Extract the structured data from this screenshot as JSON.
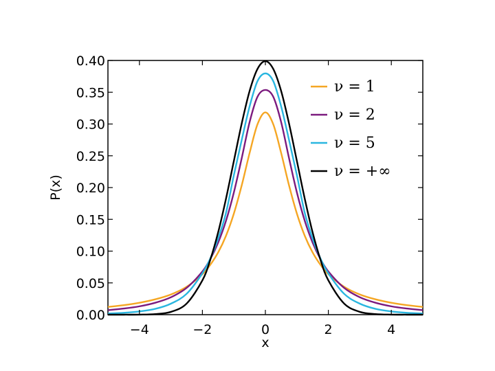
{
  "chart_data": {
    "type": "line",
    "title": "",
    "xlabel": "x",
    "ylabel": "P(x)",
    "xlim": [
      -5,
      5
    ],
    "ylim": [
      0,
      0.4
    ],
    "x_ticks": [
      -4,
      -2,
      0,
      2,
      4
    ],
    "x_tick_labels": [
      "−4",
      "−2",
      "0",
      "2",
      "4"
    ],
    "y_ticks": [
      0,
      0.05,
      0.1,
      0.15,
      0.2,
      0.25,
      0.3,
      0.35,
      0.4
    ],
    "y_tick_labels": [
      "0.00",
      "0.05",
      "0.10",
      "0.15",
      "0.20",
      "0.25",
      "0.30",
      "0.35",
      "0.40"
    ],
    "grid": false,
    "legend_position": "top-right",
    "x": [
      -5,
      -4.5,
      -4,
      -3.5,
      -3,
      -2.5,
      -2,
      -1.75,
      -1.5,
      -1.25,
      -1,
      -0.75,
      -0.5,
      -0.25,
      0,
      0.25,
      0.5,
      0.75,
      1,
      1.25,
      1.5,
      1.75,
      2,
      2.5,
      3,
      3.5,
      4,
      4.5,
      5
    ],
    "series": [
      {
        "name": "ν = 1",
        "color": "#f5a623",
        "values": [
          0.0122,
          0.0149,
          0.0187,
          0.0241,
          0.0318,
          0.0439,
          0.0637,
          0.0785,
          0.0979,
          0.1242,
          0.1592,
          0.2037,
          0.2546,
          0.2996,
          0.3183,
          0.2996,
          0.2546,
          0.2037,
          0.1592,
          0.1242,
          0.0979,
          0.0785,
          0.0637,
          0.0439,
          0.0318,
          0.0241,
          0.0187,
          0.0149,
          0.0122
        ]
      },
      {
        "name": "ν = 2",
        "color": "#7b1a7e",
        "values": [
          0.0071,
          0.0096,
          0.0131,
          0.0187,
          0.0274,
          0.0422,
          0.068,
          0.0875,
          0.1134,
          0.1478,
          0.1925,
          0.2465,
          0.3032,
          0.3429,
          0.3536,
          0.3429,
          0.3032,
          0.2465,
          0.1925,
          0.1478,
          0.1134,
          0.0875,
          0.068,
          0.0422,
          0.0274,
          0.0187,
          0.0131,
          0.0096,
          0.0071
        ]
      },
      {
        "name": "ν = 5",
        "color": "#29b6e0",
        "values": [
          0.0018,
          0.0029,
          0.0051,
          0.0091,
          0.0173,
          0.0329,
          0.0651,
          0.0884,
          0.1197,
          0.1603,
          0.2197,
          0.2752,
          0.3279,
          0.3675,
          0.3796,
          0.3675,
          0.3279,
          0.2752,
          0.2197,
          0.1603,
          0.1197,
          0.0884,
          0.0651,
          0.0329,
          0.0173,
          0.0091,
          0.0051,
          0.0029,
          0.0018
        ]
      },
      {
        "name": "ν = +∞",
        "color": "#000000",
        "values": [
          1.5e-06,
          1.6e-05,
          0.0001,
          0.0009,
          0.0044,
          0.0175,
          0.054,
          0.0863,
          0.1295,
          0.1826,
          0.242,
          0.3011,
          0.3521,
          0.3867,
          0.3989,
          0.3867,
          0.3521,
          0.3011,
          0.242,
          0.1826,
          0.1295,
          0.0863,
          0.054,
          0.0175,
          0.0044,
          0.0009,
          0.0001,
          1.6e-05,
          1.5e-06
        ]
      }
    ]
  }
}
